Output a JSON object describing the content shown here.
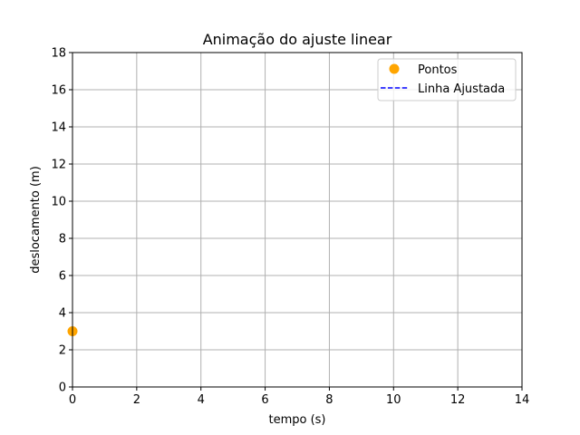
{
  "chart_data": {
    "type": "scatter",
    "title": "Animação do ajuste linear",
    "xlabel": "tempo (s)",
    "ylabel": "deslocamento (m)",
    "xlim": [
      0,
      14
    ],
    "ylim": [
      0,
      18
    ],
    "xticks": [
      0,
      2,
      4,
      6,
      8,
      10,
      12,
      14
    ],
    "yticks": [
      0,
      2,
      4,
      6,
      8,
      10,
      12,
      14,
      16,
      18
    ],
    "grid": true,
    "legend_position": "top-right",
    "series": [
      {
        "name": "Pontos",
        "kind": "scatter",
        "color": "#ffa500",
        "x": [
          0
        ],
        "y": [
          3
        ]
      },
      {
        "name": "Linha Ajustada",
        "kind": "line",
        "style": "dashed",
        "color": "#0000ff",
        "x": [],
        "y": []
      }
    ]
  }
}
